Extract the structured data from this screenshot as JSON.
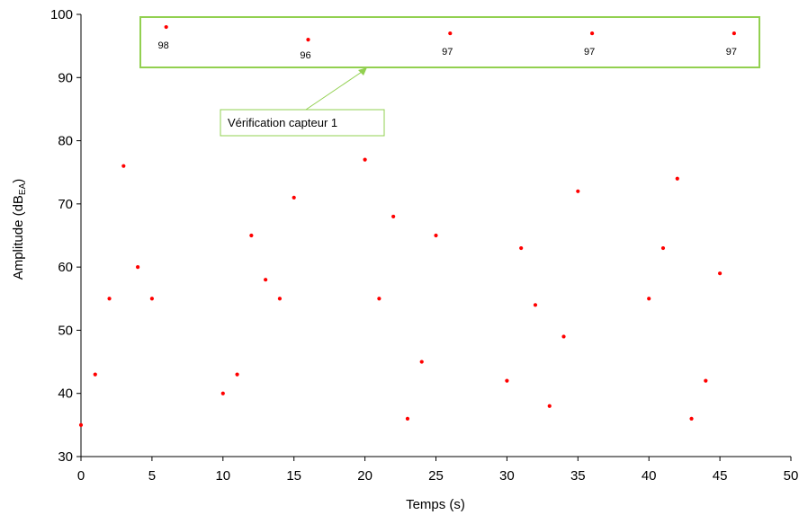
{
  "chart_data": {
    "type": "scatter",
    "xlabel": "Temps (s)",
    "ylabel_main": "Amplitude (dB",
    "ylabel_sub": "EA",
    "ylabel_close": ")",
    "xlim": [
      0,
      50
    ],
    "ylim": [
      30,
      100
    ],
    "xticks": [
      0,
      5,
      10,
      15,
      20,
      25,
      30,
      35,
      40,
      45,
      50
    ],
    "yticks": [
      30,
      40,
      50,
      60,
      70,
      80,
      90,
      100
    ],
    "grid": false,
    "marker_color": "#ff0000",
    "points": [
      {
        "x": 0,
        "y": 35
      },
      {
        "x": 1,
        "y": 43
      },
      {
        "x": 2,
        "y": 55
      },
      {
        "x": 3,
        "y": 76
      },
      {
        "x": 4,
        "y": 60
      },
      {
        "x": 5,
        "y": 55
      },
      {
        "x": 6,
        "y": 98
      },
      {
        "x": 10,
        "y": 40
      },
      {
        "x": 11,
        "y": 43
      },
      {
        "x": 12,
        "y": 65
      },
      {
        "x": 13,
        "y": 58
      },
      {
        "x": 14,
        "y": 55
      },
      {
        "x": 15,
        "y": 71
      },
      {
        "x": 16,
        "y": 96
      },
      {
        "x": 20,
        "y": 77
      },
      {
        "x": 21,
        "y": 55
      },
      {
        "x": 22,
        "y": 68
      },
      {
        "x": 23,
        "y": 36
      },
      {
        "x": 24,
        "y": 45
      },
      {
        "x": 25,
        "y": 65
      },
      {
        "x": 26,
        "y": 97
      },
      {
        "x": 30,
        "y": 42
      },
      {
        "x": 31,
        "y": 63
      },
      {
        "x": 32,
        "y": 54
      },
      {
        "x": 33,
        "y": 38
      },
      {
        "x": 34,
        "y": 49
      },
      {
        "x": 35,
        "y": 72
      },
      {
        "x": 36,
        "y": 97
      },
      {
        "x": 40,
        "y": 55
      },
      {
        "x": 41,
        "y": 63
      },
      {
        "x": 42,
        "y": 74
      },
      {
        "x": 43,
        "y": 36
      },
      {
        "x": 44,
        "y": 42
      },
      {
        "x": 45,
        "y": 59
      },
      {
        "x": 46,
        "y": 97
      }
    ],
    "data_labels": [
      {
        "x": 6,
        "y": 98,
        "text": "98",
        "side": "below"
      },
      {
        "x": 16,
        "y": 96,
        "text": "96",
        "side": "below"
      },
      {
        "x": 26,
        "y": 97,
        "text": "97",
        "side": "below"
      },
      {
        "x": 36,
        "y": 97,
        "text": "97",
        "side": "below"
      },
      {
        "x": 46,
        "y": 97,
        "text": "97",
        "side": "below"
      }
    ],
    "annotation": {
      "text": "Vérification capteur 1",
      "box_color": "#92d050"
    }
  }
}
